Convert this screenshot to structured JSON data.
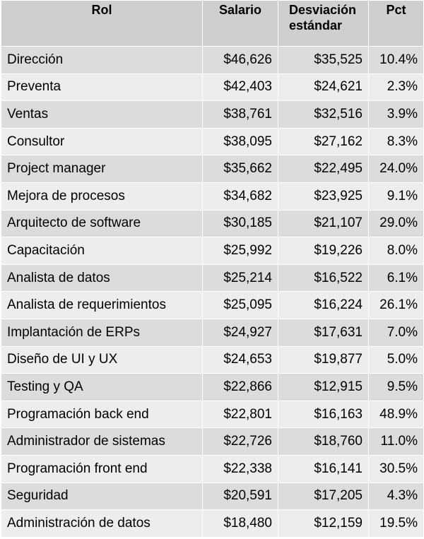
{
  "chart_data": {
    "type": "table",
    "columns": [
      "Rol",
      "Salario",
      "Desviación estándar",
      "Pct"
    ],
    "rows": [
      [
        "Dirección",
        "$46,626",
        "$35,525",
        "10.4%"
      ],
      [
        "Preventa",
        "$42,403",
        "$24,621",
        "2.3%"
      ],
      [
        "Ventas",
        "$38,761",
        "$32,516",
        "3.9%"
      ],
      [
        "Consultor",
        "$38,095",
        "$27,162",
        "8.3%"
      ],
      [
        "Project manager",
        "$35,662",
        "$22,495",
        "24.0%"
      ],
      [
        "Mejora de procesos",
        "$34,682",
        "$23,925",
        "9.1%"
      ],
      [
        "Arquitecto de software",
        "$30,185",
        "$21,107",
        "29.0%"
      ],
      [
        "Capacitación",
        "$25,992",
        "$19,226",
        "8.0%"
      ],
      [
        "Analista de datos",
        "$25,214",
        "$16,522",
        "6.1%"
      ],
      [
        "Analista de requerimientos",
        "$25,095",
        "$16,224",
        "26.1%"
      ],
      [
        "Implantación de ERPs",
        "$24,927",
        "$17,631",
        "7.0%"
      ],
      [
        "Diseño de UI y UX",
        "$24,653",
        "$19,877",
        "5.0%"
      ],
      [
        "Testing y QA",
        "$22,866",
        "$12,915",
        "9.5%"
      ],
      [
        "Programación back end",
        "$22,801",
        "$16,163",
        "48.9%"
      ],
      [
        "Administrador de sistemas",
        "$22,726",
        "$18,760",
        "11.0%"
      ],
      [
        "Programación front end",
        "$22,338",
        "$16,141",
        "30.5%"
      ],
      [
        "Seguridad",
        "$20,591",
        "$17,205",
        "4.3%"
      ],
      [
        "Administración de datos",
        "$18,480",
        "$12,159",
        "19.5%"
      ]
    ]
  }
}
